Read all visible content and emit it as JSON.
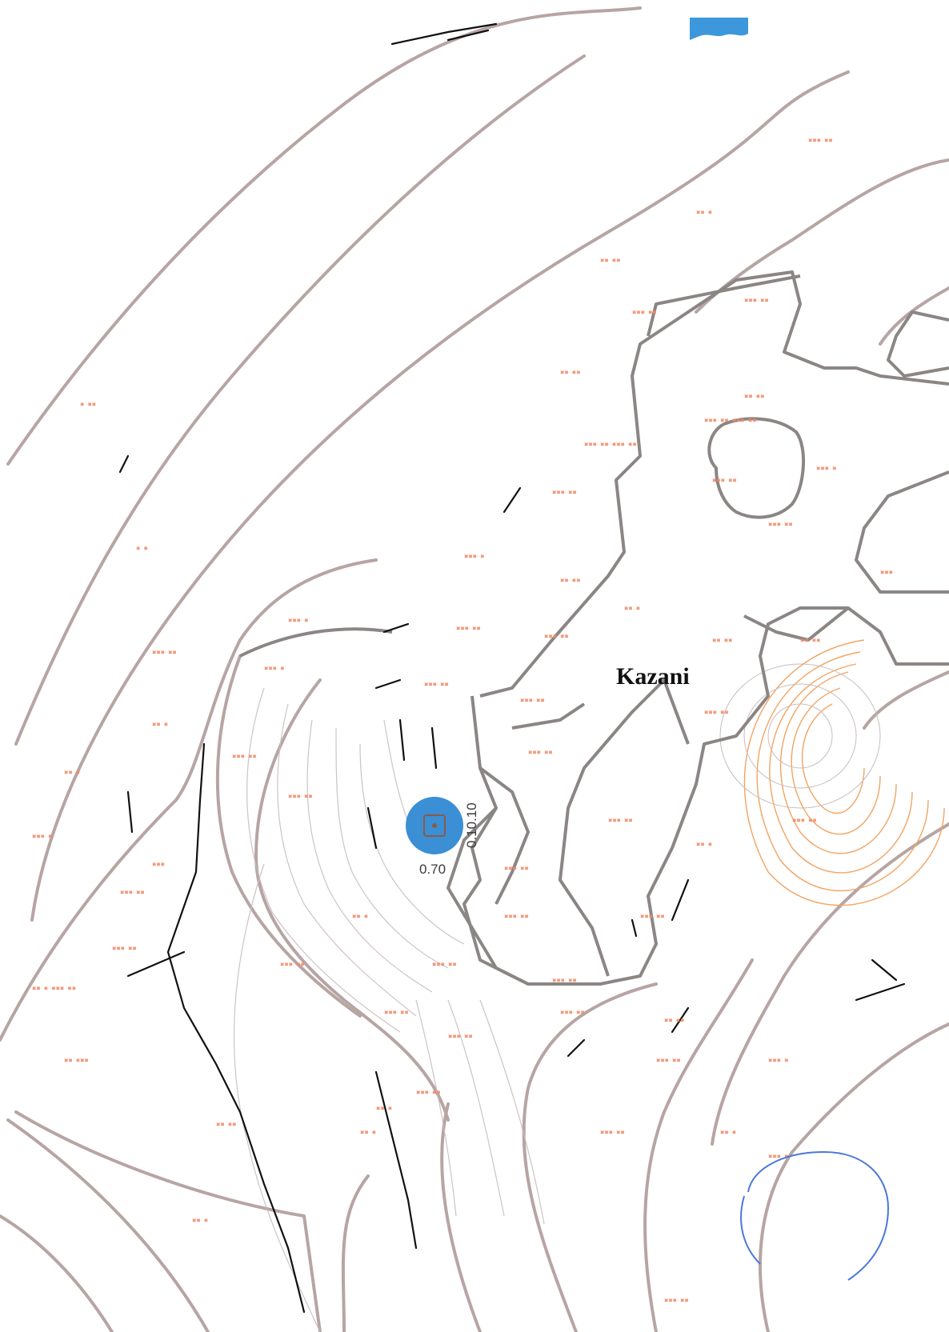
{
  "map": {
    "place_name": "Kazani",
    "marker": {
      "icon": "point-marker-icon",
      "color": "#3b8fd4",
      "label_right": "0.10.10",
      "label_bottom": "0.70"
    },
    "colors": {
      "contour": "#b7a5a3",
      "boundary": "#8b8584",
      "elevation_label": "#f08a66",
      "stamp": "#4a78d8",
      "corner_flag": "#3d97db"
    },
    "icons": [
      "corner-flag-icon",
      "stamp-seal-icon"
    ]
  }
}
